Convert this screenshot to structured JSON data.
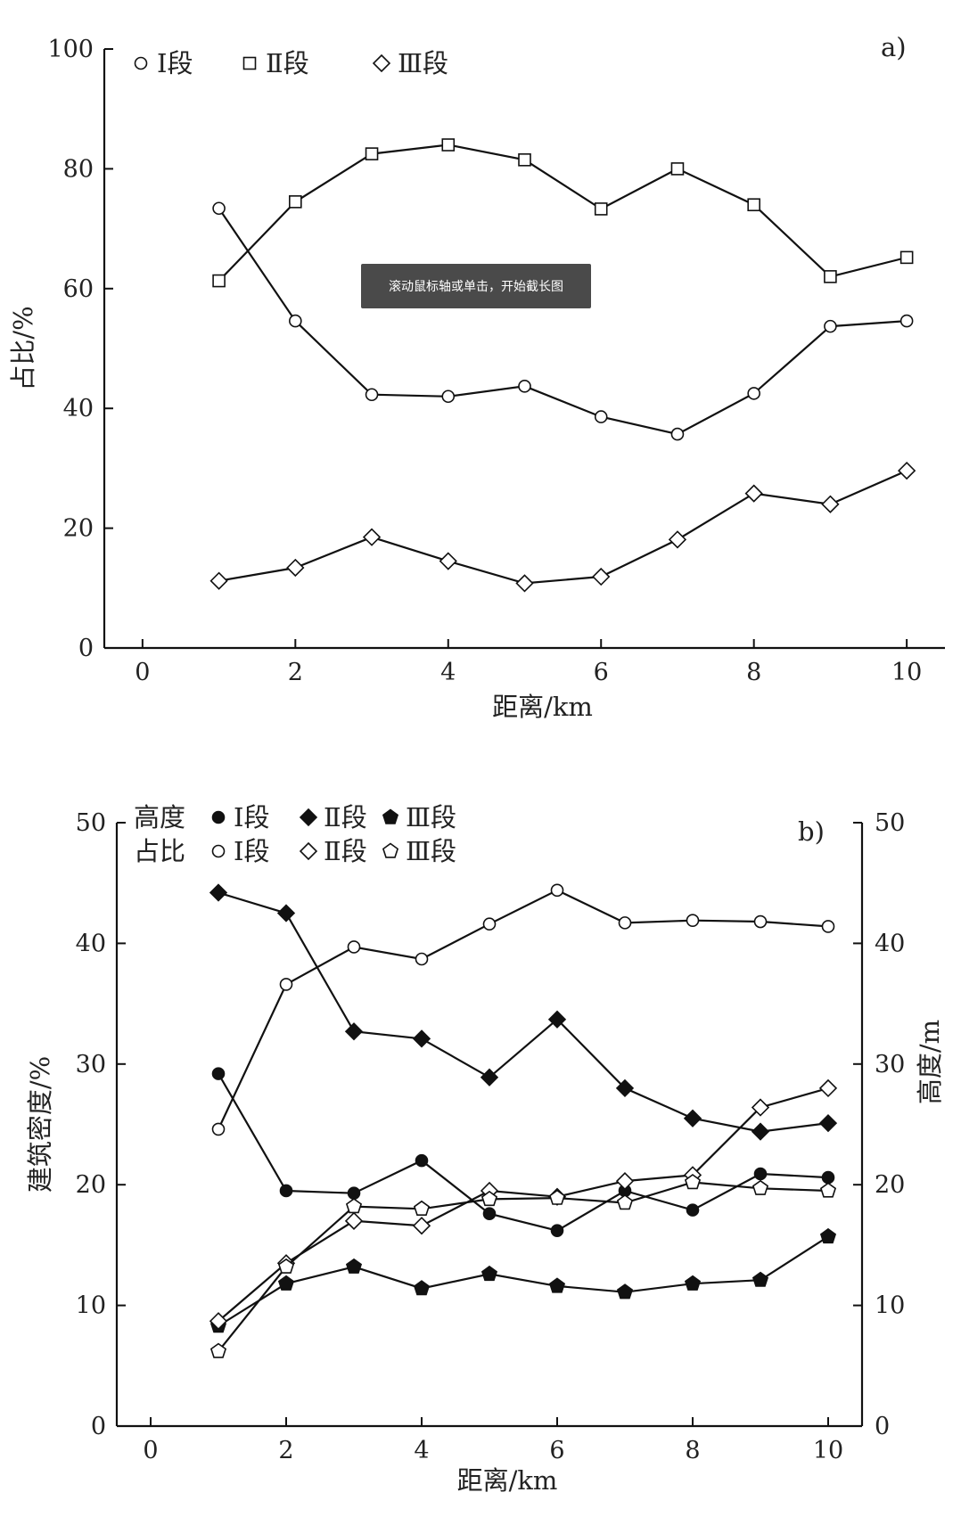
{
  "tooltip": {
    "text": "滚动鼠标轴或单击，开始截长图"
  },
  "chart_data": [
    {
      "type": "line",
      "panel_label": "a)",
      "xlabel": "距离/km",
      "ylabel": "占比/%",
      "xlim": [
        -0.5,
        10.5
      ],
      "ylim": [
        0,
        100
      ],
      "xticks": [
        0,
        2,
        4,
        6,
        8,
        10
      ],
      "yticks": [
        0,
        20,
        40,
        60,
        80,
        100
      ],
      "x": [
        1,
        2,
        3,
        4,
        5,
        6,
        7,
        8,
        9,
        10
      ],
      "legend_position": "top-left",
      "series": [
        {
          "name": "Ⅰ段",
          "marker": "circle-open",
          "values": [
            73.4,
            54.6,
            42.3,
            42.0,
            43.7,
            38.6,
            35.7,
            42.5,
            53.7,
            54.6
          ]
        },
        {
          "name": "Ⅱ段",
          "marker": "square-open",
          "values": [
            61.3,
            74.5,
            82.5,
            84.0,
            81.5,
            73.3,
            80.0,
            74.0,
            62.0,
            65.2
          ]
        },
        {
          "name": "Ⅲ段",
          "marker": "diamond-open",
          "values": [
            11.2,
            13.4,
            18.5,
            14.5,
            10.8,
            11.9,
            18.1,
            25.8,
            24.0,
            29.6
          ]
        }
      ]
    },
    {
      "type": "line",
      "panel_label": "b)",
      "xlabel": "距离/km",
      "ylabel": "建筑密度/%",
      "ylabel_right": "高度/m",
      "xlim": [
        -0.5,
        10.5
      ],
      "ylim": [
        0,
        50
      ],
      "ylim_right": [
        0,
        50
      ],
      "xticks": [
        0,
        2,
        4,
        6,
        8,
        10
      ],
      "yticks": [
        0,
        10,
        20,
        30,
        40,
        50
      ],
      "yticks_right": [
        0,
        10,
        20,
        30,
        40,
        50
      ],
      "x": [
        1,
        2,
        3,
        4,
        5,
        6,
        7,
        8,
        9,
        10
      ],
      "legend_position": "top-left",
      "legend_group_labels": [
        "高度",
        "占比"
      ],
      "series": [
        {
          "name": "Ⅰ段",
          "group": "高度",
          "marker": "circle-filled",
          "values": [
            29.2,
            19.5,
            19.3,
            22.0,
            17.6,
            16.2,
            19.5,
            17.9,
            20.9,
            20.6
          ]
        },
        {
          "name": "Ⅱ段",
          "group": "高度",
          "marker": "diamond-filled",
          "values": [
            44.2,
            42.5,
            32.7,
            32.1,
            28.9,
            33.7,
            28.0,
            25.5,
            24.4,
            25.1
          ]
        },
        {
          "name": "Ⅲ段",
          "group": "高度",
          "marker": "pentagon-filled",
          "values": [
            8.3,
            11.8,
            13.2,
            11.4,
            12.6,
            11.6,
            11.1,
            11.8,
            12.1,
            15.7
          ]
        },
        {
          "name": "Ⅰ段",
          "group": "占比",
          "marker": "circle-open",
          "values": [
            24.6,
            36.6,
            39.7,
            38.7,
            41.6,
            44.4,
            41.7,
            41.9,
            41.8,
            41.4
          ]
        },
        {
          "name": "Ⅱ段",
          "group": "占比",
          "marker": "diamond-open",
          "values": [
            8.7,
            13.5,
            17.0,
            16.6,
            19.5,
            19.0,
            20.3,
            20.8,
            26.4,
            28.0
          ]
        },
        {
          "name": "Ⅲ段",
          "group": "占比",
          "marker": "pentagon-open",
          "values": [
            6.2,
            13.2,
            18.2,
            18.0,
            18.8,
            18.9,
            18.5,
            20.2,
            19.7,
            19.5
          ]
        }
      ]
    }
  ]
}
